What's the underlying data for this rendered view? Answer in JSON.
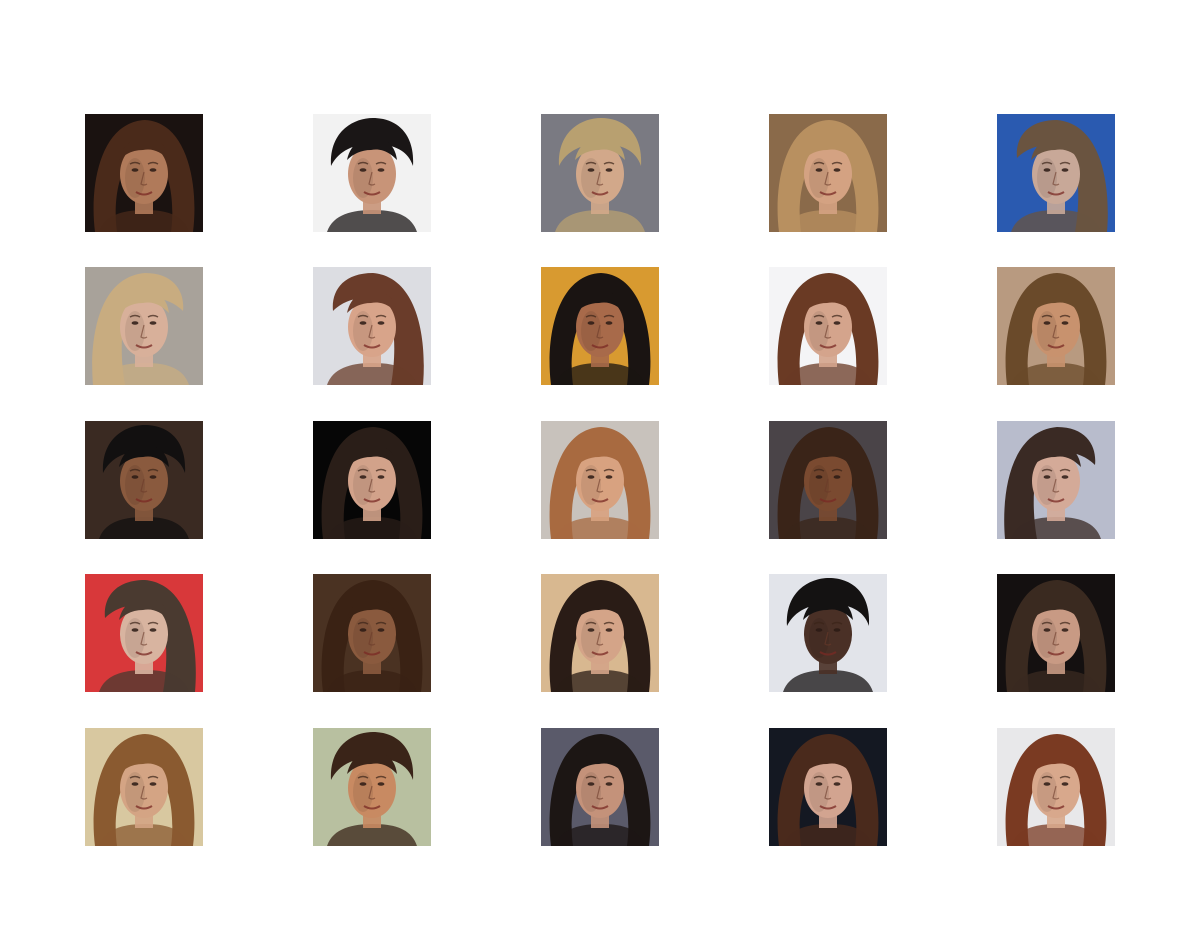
{
  "figure": {
    "rows": 5,
    "cols": 5,
    "samples": [
      {
        "bg": "#1a1210",
        "hair": "#4a2a1a",
        "skin": "#b07a5a",
        "hair_side": "both"
      },
      {
        "bg": "#f2f2f2",
        "hair": "#1a1616",
        "skin": "#c89478",
        "hair_side": "top"
      },
      {
        "bg": "#7a7a82",
        "hair": "#b8a070",
        "skin": "#d2a88a",
        "hair_side": "top"
      },
      {
        "bg": "#8a6a4a",
        "hair": "#b89060",
        "skin": "#d4a282",
        "hair_side": "both"
      },
      {
        "bg": "#2a5ab0",
        "hair": "#6a5440",
        "skin": "#c8a898",
        "hair_side": "right"
      },
      {
        "bg": "#a8a29a",
        "hair": "#c8ac80",
        "skin": "#d8b09a",
        "hair_side": "left"
      },
      {
        "bg": "#dcdde2",
        "hair": "#6a3c2a",
        "skin": "#d8a48a",
        "hair_side": "right"
      },
      {
        "bg": "#d89a30",
        "hair": "#1a1412",
        "skin": "#a86a4a",
        "hair_side": "both"
      },
      {
        "bg": "#f4f4f6",
        "hair": "#6a3a24",
        "skin": "#d4a48c",
        "hair_side": "both"
      },
      {
        "bg": "#b89a80",
        "hair": "#6a4a2a",
        "skin": "#c8926e",
        "hair_side": "both"
      },
      {
        "bg": "#3a2a22",
        "hair": "#121010",
        "skin": "#8a5a3e",
        "hair_side": "top"
      },
      {
        "bg": "#060606",
        "hair": "#2a1e18",
        "skin": "#d2a28a",
        "hair_side": "both"
      },
      {
        "bg": "#c8c2bc",
        "hair": "#a86a40",
        "skin": "#d8a280",
        "hair_side": "both"
      },
      {
        "bg": "#4a4448",
        "hair": "#3a2418",
        "skin": "#7a4a30",
        "hair_side": "both"
      },
      {
        "bg": "#b8bccc",
        "hair": "#3a2a24",
        "skin": "#d4aa98",
        "hair_side": "left"
      },
      {
        "bg": "#d8383a",
        "hair": "#4a3a30",
        "skin": "#d8b4a0",
        "hair_side": "right"
      },
      {
        "bg": "#4a3222",
        "hair": "#3a2214",
        "skin": "#8a5a3e",
        "hair_side": "both"
      },
      {
        "bg": "#d8b890",
        "hair": "#2a1c16",
        "skin": "#d4a488",
        "hair_side": "both"
      },
      {
        "bg": "#e2e4ea",
        "hair": "#141212",
        "skin": "#4a3026",
        "hair_side": "top"
      },
      {
        "bg": "#141010",
        "hair": "#3a2a20",
        "skin": "#c89a84",
        "hair_side": "both"
      },
      {
        "bg": "#d8c8a0",
        "hair": "#8a5a30",
        "skin": "#d4a484",
        "hair_side": "both"
      },
      {
        "bg": "#b8c0a0",
        "hair": "#3a2418",
        "skin": "#c88a62",
        "hair_side": "top"
      },
      {
        "bg": "#5a5a6a",
        "hair": "#1c1614",
        "skin": "#c4927a",
        "hair_side": "both"
      },
      {
        "bg": "#141822",
        "hair": "#4a2a1c",
        "skin": "#d2a490",
        "hair_side": "both"
      },
      {
        "bg": "#e8e8ea",
        "hair": "#7a3a22",
        "skin": "#d8a88c",
        "hair_side": "both"
      }
    ]
  }
}
